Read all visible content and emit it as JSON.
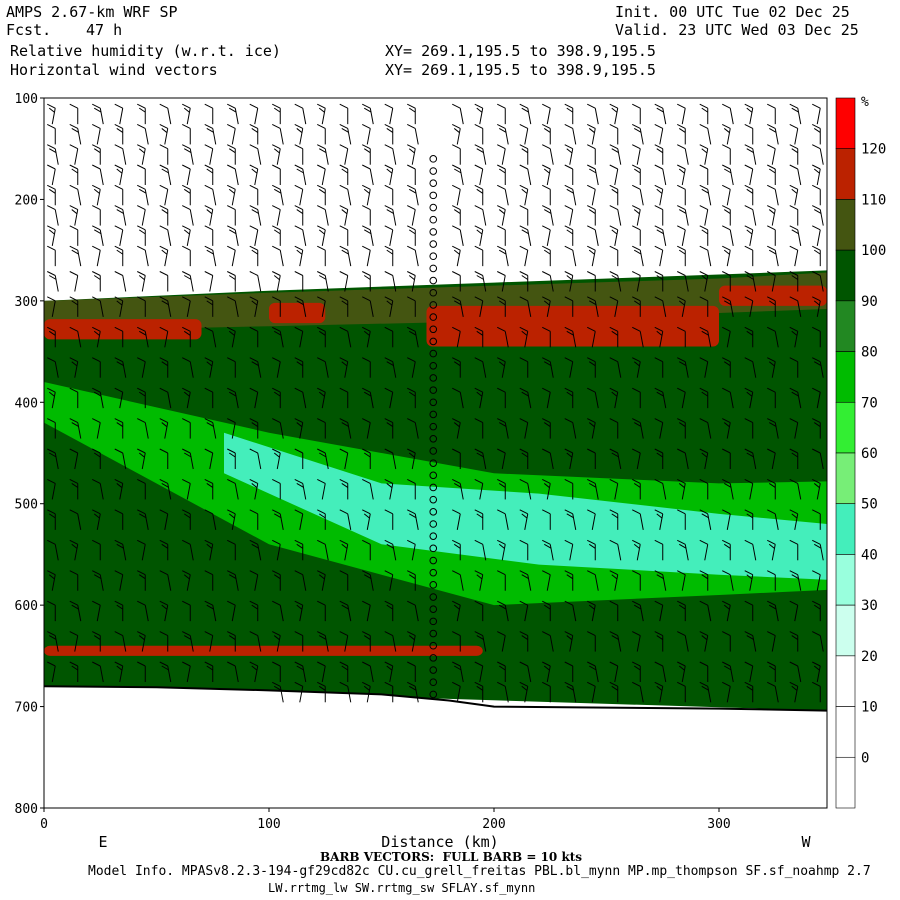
{
  "header": {
    "model": "AMPS 2.67-km WRF SP",
    "fcst_label": "Fcst.",
    "fcst_value": "47 h",
    "field1": "Relative humidity (w.r.t. ice)",
    "field2": "Horizontal wind vectors",
    "init": "Init. 00 UTC Tue 02 Dec 25",
    "valid": "Valid. 23 UTC Wed 03 Dec 25",
    "xy1": "XY= 269.1,195.5 to 398.9,195.5",
    "xy2": "XY= 269.1,195.5 to 398.9,195.5"
  },
  "footer": {
    "barb_note": "BARB VECTORS:  FULL BARB = 10 kts",
    "model_info": "Model Info. MPASv8.2.3-194-gf29cd82c CU.cu_grell_freitas PBL.bl_mynn MP.mp_thompson SF.sf_noahmp 2.7",
    "model_info2": "LW.rrtmg_lw SW.rrtmg_sw SFLAY.sf_mynn"
  },
  "chart_data": {
    "type": "heatmap",
    "title": "Relative humidity (w.r.t. ice)",
    "xlabel": "Distance (km)",
    "ylabel": "",
    "xlim": [
      0,
      348
    ],
    "ylim": [
      800,
      100
    ],
    "x_ticks": [
      0,
      100,
      200,
      300
    ],
    "y_ticks": [
      100,
      200,
      300,
      400,
      500,
      600,
      700,
      800
    ],
    "x_end_labels": {
      "left": "E",
      "right": "W"
    },
    "colorbar": {
      "unit": "%",
      "levels": [
        0,
        10,
        20,
        30,
        40,
        50,
        60,
        70,
        80,
        90,
        100,
        110,
        120
      ],
      "colors": [
        "#ffffff",
        "#ffffff",
        "#ffffff",
        "#ccffee",
        "#99ffdd",
        "#44eebb",
        "#77ee77",
        "#33ee33",
        "#00bb00",
        "#228822",
        "#005500",
        "#445511",
        "#bb2200",
        "#ff0000"
      ]
    },
    "surface_pressure": [
      [
        0,
        680
      ],
      [
        50,
        681
      ],
      [
        100,
        684
      ],
      [
        150,
        688
      ],
      [
        180,
        694
      ],
      [
        200,
        700
      ],
      [
        250,
        701
      ],
      [
        300,
        702
      ],
      [
        348,
        704
      ]
    ],
    "layers": [
      {
        "name": "RH 90-100 main band",
        "rh": 95,
        "top": [
          [
            0,
            300
          ],
          [
            100,
            290
          ],
          [
            200,
            282
          ],
          [
            300,
            274
          ],
          [
            348,
            270
          ]
        ],
        "bottom": [
          [
            0,
            680
          ],
          [
            348,
            704
          ]
        ]
      },
      {
        "name": "RH 100-110 upper band",
        "rh": 105,
        "top": [
          [
            0,
            300
          ],
          [
            100,
            292
          ],
          [
            200,
            285
          ],
          [
            300,
            278
          ],
          [
            348,
            272
          ]
        ],
        "bottom": [
          [
            0,
            330
          ],
          [
            100,
            325
          ],
          [
            200,
            320
          ],
          [
            300,
            312
          ],
          [
            348,
            308
          ]
        ]
      },
      {
        "name": "RH >110 upper band",
        "rh": 115,
        "segments": [
          [
            0,
            318,
            70,
            338
          ],
          [
            100,
            302,
            125,
            322
          ],
          [
            170,
            305,
            300,
            345
          ],
          [
            300,
            285,
            348,
            305
          ]
        ]
      },
      {
        "name": "RH 70-80 dry layer",
        "rh": 75,
        "top": [
          [
            0,
            380
          ],
          [
            100,
            430
          ],
          [
            200,
            470
          ],
          [
            300,
            480
          ],
          [
            348,
            478
          ]
        ],
        "bottom": [
          [
            0,
            420
          ],
          [
            100,
            540
          ],
          [
            200,
            600
          ],
          [
            300,
            590
          ],
          [
            348,
            585
          ]
        ]
      },
      {
        "name": "RH 40-50 dry core",
        "rh": 45,
        "top": [
          [
            80,
            430
          ],
          [
            150,
            480
          ],
          [
            220,
            490
          ],
          [
            300,
            510
          ],
          [
            348,
            520
          ]
        ],
        "bottom": [
          [
            80,
            470
          ],
          [
            150,
            540
          ],
          [
            220,
            560
          ],
          [
            300,
            570
          ],
          [
            348,
            575
          ]
        ]
      },
      {
        "name": "RH >110 low band",
        "rh": 115,
        "segments": [
          [
            0,
            640,
            195,
            650
          ]
        ]
      }
    ],
    "sounding_column_x": 173,
    "barb_columns_x": [
      5,
      15,
      25,
      35,
      45,
      55,
      65,
      75,
      85,
      95,
      105,
      115,
      125,
      135,
      145,
      155,
      165,
      185,
      195,
      205,
      215,
      225,
      235,
      245,
      255,
      265,
      275,
      285,
      295,
      305,
      315,
      325,
      335,
      345
    ],
    "barb_levels_p": [
      110,
      130,
      150,
      170,
      190,
      210,
      230,
      250,
      275,
      300,
      330,
      360,
      390,
      420,
      450,
      480,
      510,
      540,
      570,
      600,
      630,
      660,
      680
    ]
  }
}
